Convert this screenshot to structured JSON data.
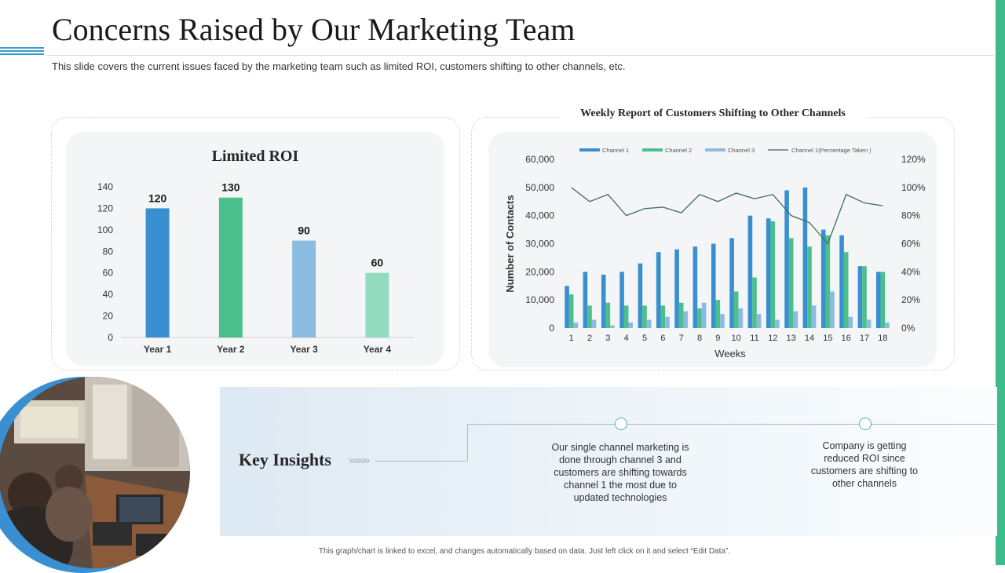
{
  "page": {
    "title": "Concerns Raised by Our Marketing Team",
    "subtitle": "This slide covers the current issues faced by the marketing team such as limited ROI, customers shifting to other channels, etc.",
    "footer_note": "This graph/chart is linked to excel, and changes automatically based on data. Just left click on it and select “Edit Data”.",
    "accent_colors": {
      "right_bar": "#3dbb8a",
      "blue": "#3a8fd0"
    }
  },
  "chart_data": [
    {
      "type": "bar",
      "title": "Limited ROI",
      "categories": [
        "Year 1",
        "Year 2",
        "Year 3",
        "Year 4"
      ],
      "values": [
        120,
        130,
        90,
        60
      ],
      "data_labels": [
        "120",
        "130",
        "90",
        "60"
      ],
      "bar_colors": [
        "#3a8fd0",
        "#4cc08a",
        "#8cbbe0",
        "#93dbc0"
      ],
      "ylim": [
        0,
        140
      ],
      "yticks": [
        "0",
        "20",
        "40",
        "60",
        "80",
        "100",
        "120",
        "140"
      ],
      "grid": false
    },
    {
      "type": "bar",
      "title": "Weekly Report of Customers Shifting to Other Channels",
      "xlabel": "Weeks",
      "ylabel": "Number of Contacts",
      "categories": [
        "1",
        "2",
        "3",
        "4",
        "5",
        "6",
        "7",
        "8",
        "9",
        "10",
        "11",
        "12",
        "13",
        "14",
        "15",
        "16",
        "17",
        "18"
      ],
      "series": [
        {
          "name": "Channel 1",
          "color": "#3a8fd0",
          "values": [
            15000,
            20000,
            19000,
            20000,
            23000,
            27000,
            28000,
            29000,
            30000,
            32000,
            40000,
            39000,
            49000,
            50000,
            35000,
            33000,
            22000,
            20000
          ]
        },
        {
          "name": "Channel 2",
          "color": "#4cc08a",
          "values": [
            12000,
            8000,
            9000,
            8000,
            8000,
            8000,
            9000,
            7000,
            10000,
            13000,
            18000,
            38000,
            32000,
            29000,
            33000,
            27000,
            22000,
            20000
          ]
        },
        {
          "name": "Channel 3",
          "color": "#8cbbe0",
          "values": [
            2000,
            3000,
            1000,
            2000,
            3000,
            4000,
            6000,
            9000,
            5000,
            7000,
            5000,
            3000,
            6000,
            8000,
            13000,
            4000,
            3000,
            2000
          ]
        }
      ],
      "line_series": {
        "name": "Channel 1(Percentage Taken )",
        "color": "#3d6e5a",
        "axis": "right",
        "values": [
          100,
          90,
          95,
          80,
          85,
          86,
          82,
          95,
          90,
          96,
          92,
          95,
          80,
          75,
          60,
          95,
          89,
          87
        ]
      },
      "ylim": [
        0,
        60000
      ],
      "yticks": [
        "0",
        "10,000",
        "20,000",
        "30,000",
        "40,000",
        "50,000",
        "60,000"
      ],
      "ylim_right": [
        0,
        120
      ],
      "yticks_right": [
        "0%",
        "20%",
        "40%",
        "60%",
        "80%",
        "100%",
        "120%"
      ],
      "legend_position": "top",
      "grid": false
    }
  ],
  "insights": {
    "label": "Key Insights",
    "arrows": "»»»»",
    "items": [
      "Our single channel marketing is done through  channel 3 and customers are shifting towards channel 1 the most due to updated technologies",
      "Company is getting reduced ROI since customers are shifting to other channels"
    ]
  }
}
